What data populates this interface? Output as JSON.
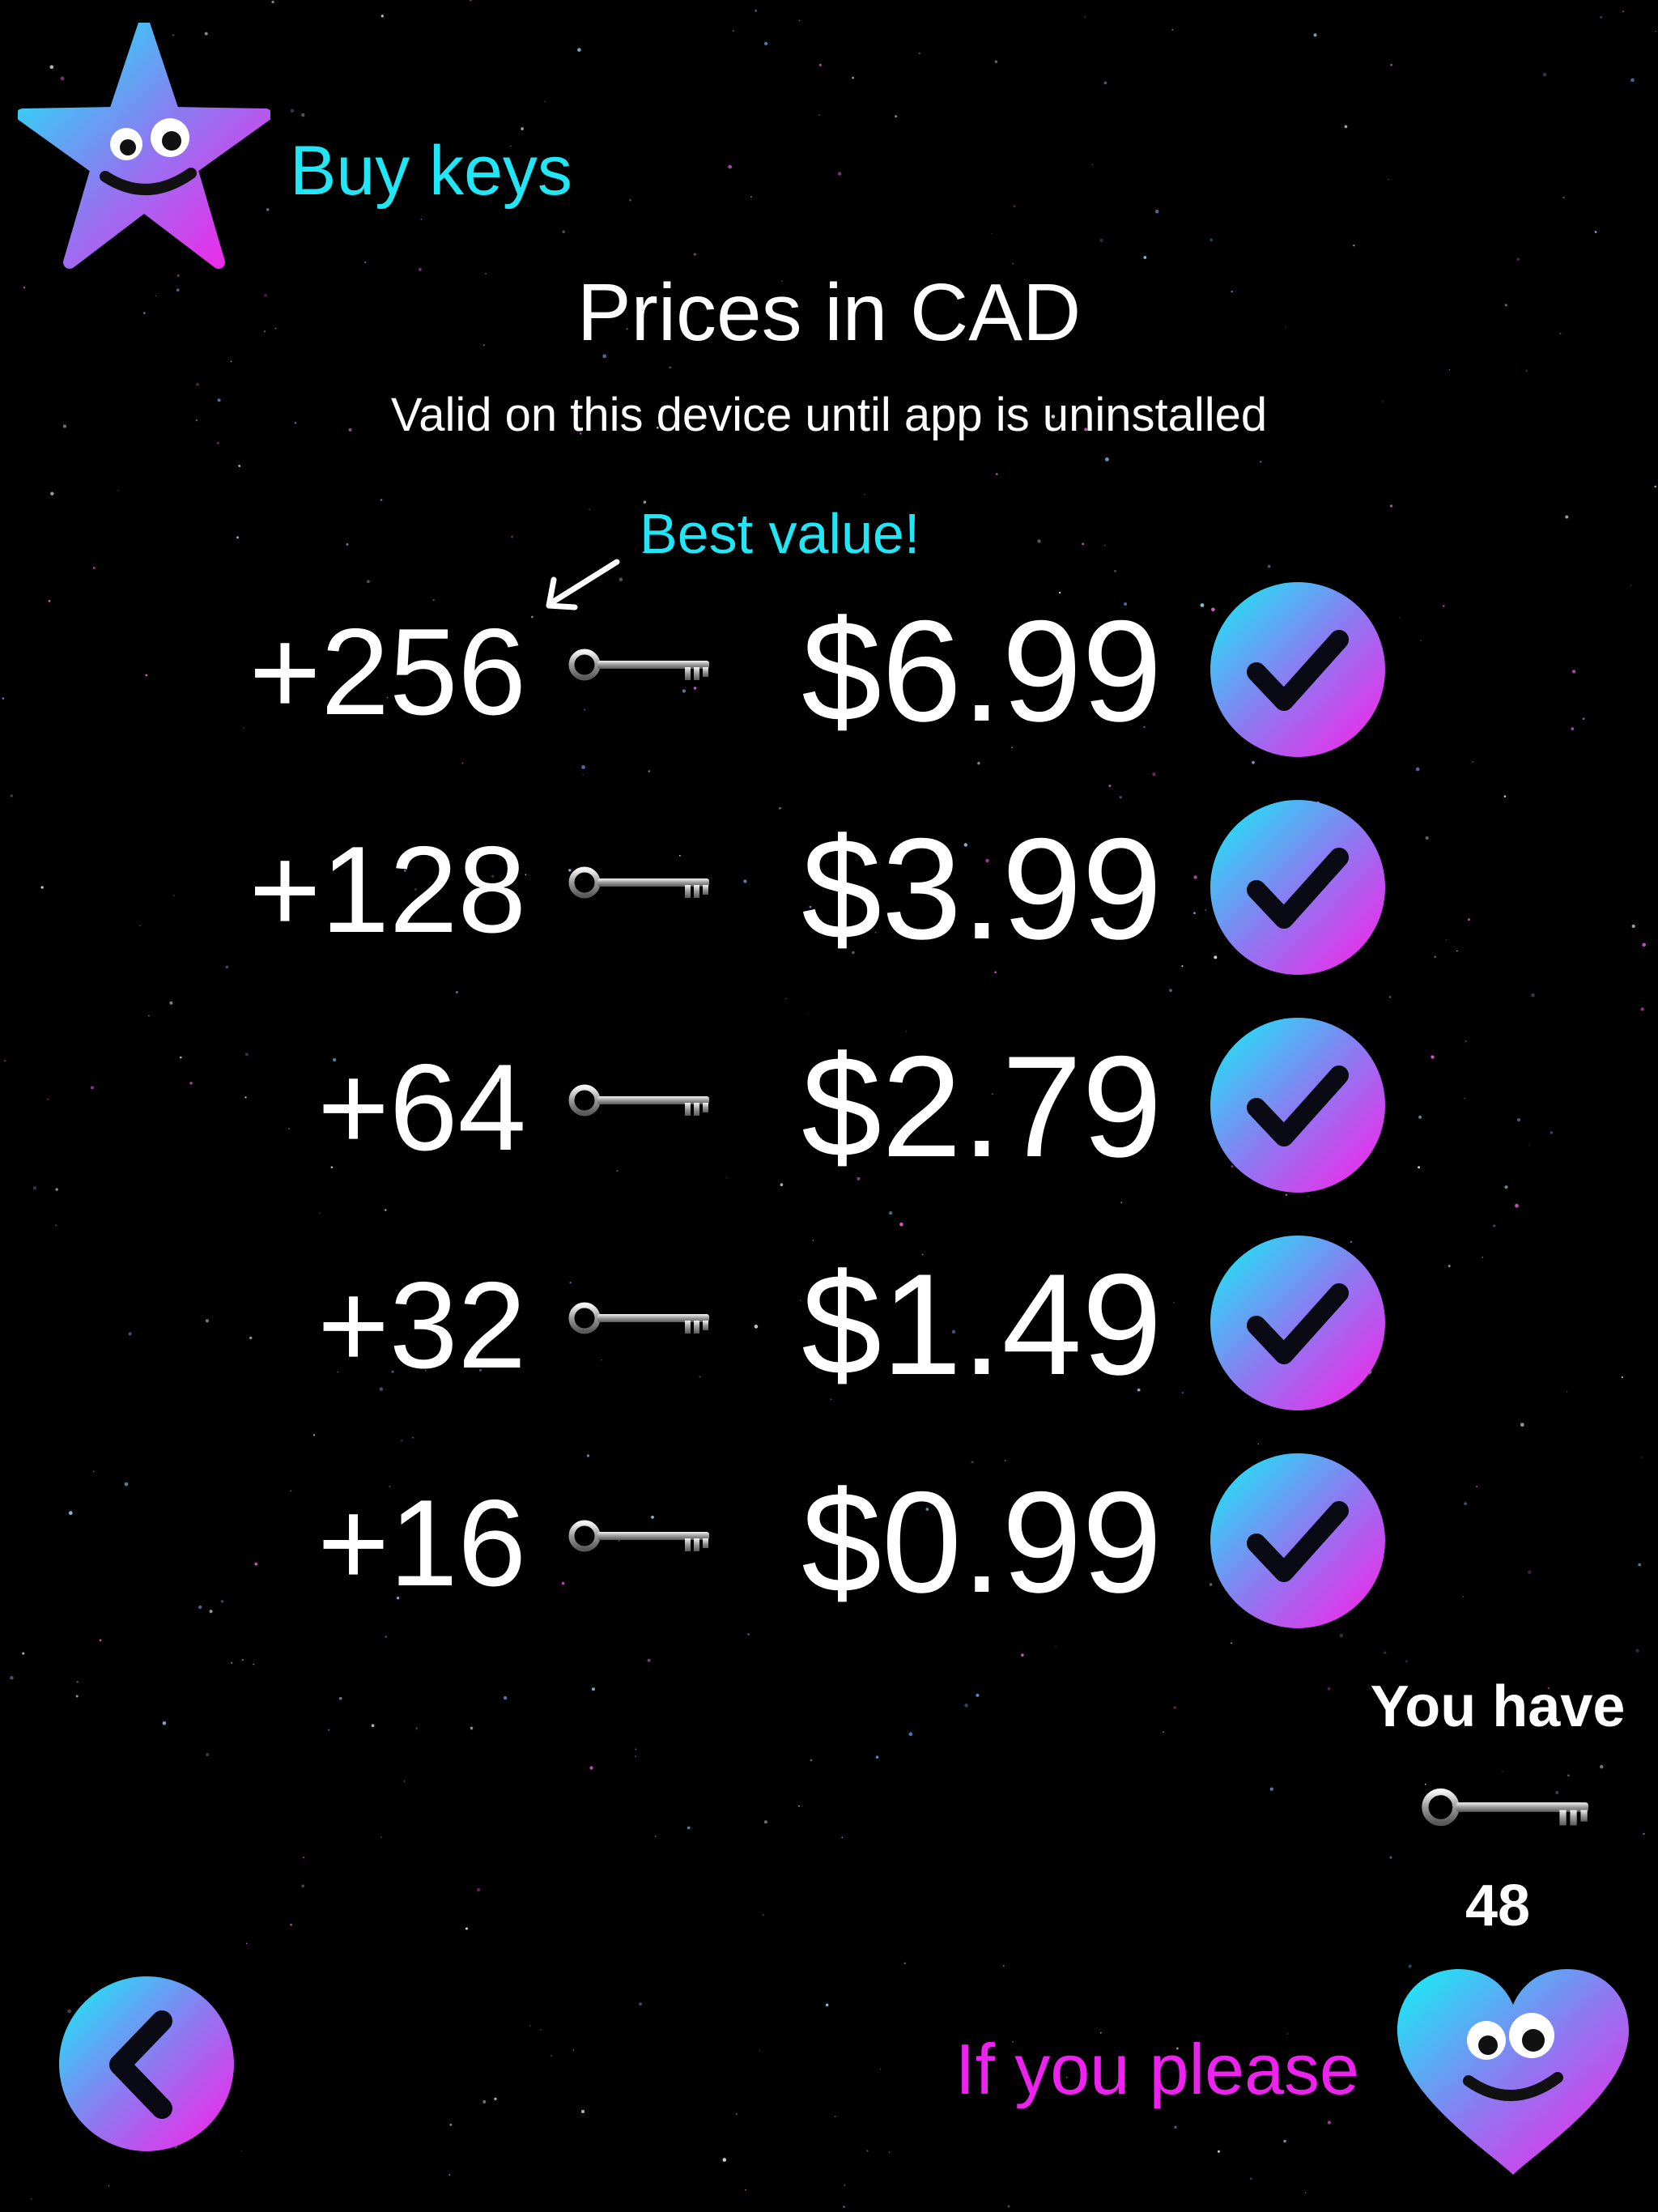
{
  "header": {
    "title": "Buy keys",
    "mascot_icon": "star-smiley-icon"
  },
  "pricing": {
    "heading": "Prices in CAD",
    "note": "Valid on this device until app is uninstalled",
    "best_value_label": "Best value!"
  },
  "offers": [
    {
      "quantity": "+256",
      "price": "$6.99",
      "best_value": true
    },
    {
      "quantity": "+128",
      "price": "$3.99",
      "best_value": false
    },
    {
      "quantity": "+64",
      "price": "$2.79",
      "best_value": false
    },
    {
      "quantity": "+32",
      "price": "$1.49",
      "best_value": false
    },
    {
      "quantity": "+16",
      "price": "$0.99",
      "best_value": false
    }
  ],
  "balance": {
    "label": "You have",
    "count": "48",
    "icon": "key-icon"
  },
  "footer": {
    "back_icon": "chevron-left-icon",
    "please_label": "If you please",
    "mascot_icon": "heart-smiley-icon"
  },
  "colors": {
    "background": "#000000",
    "accent_cyan": "#22e5f5",
    "accent_magenta": "#ee22ee",
    "text": "#ffffff"
  }
}
